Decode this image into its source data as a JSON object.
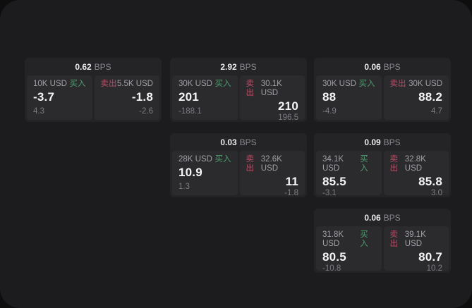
{
  "labels": {
    "bps_unit": "BPS",
    "buy": "买入",
    "sell": "卖出"
  },
  "colors": {
    "window_bg": "#1c1c1e",
    "card_bg": "#242427",
    "panel_bg": "#2b2b2e",
    "buy_green": "#4d9e6e",
    "sell_red": "#bb4d66",
    "value_white": "#f4f4f6",
    "muted_gray": "#7c7c81"
  },
  "cards": [
    {
      "bps": "0.62",
      "buy": {
        "size": "10K USD",
        "value": "-3.7",
        "change": "4.3"
      },
      "sell": {
        "size": "5.5K USD",
        "value": "-1.8",
        "change": "-2.6"
      }
    },
    {
      "bps": "2.92",
      "buy": {
        "size": "30K USD",
        "value": "201",
        "change": "-188.1"
      },
      "sell": {
        "size": "30.1K USD",
        "value": "210",
        "change": "196.5"
      }
    },
    {
      "bps": "0.06",
      "buy": {
        "size": "30K USD",
        "value": "88",
        "change": "-4.9"
      },
      "sell": {
        "size": "30K USD",
        "value": "88.2",
        "change": "4.7"
      }
    },
    {
      "bps": "0.03",
      "buy": {
        "size": "28K USD",
        "value": "10.9",
        "change": "1.3"
      },
      "sell": {
        "size": "32.6K USD",
        "value": "11",
        "change": "-1.8"
      }
    },
    {
      "bps": "0.09",
      "buy": {
        "size": "34.1K USD",
        "value": "85.5",
        "change": "-3.1"
      },
      "sell": {
        "size": "32.8K USD",
        "value": "85.8",
        "change": "3.0"
      }
    },
    {
      "bps": "0.06",
      "buy": {
        "size": "31.8K USD",
        "value": "80.5",
        "change": "-10.8"
      },
      "sell": {
        "size": "39.1K USD",
        "value": "80.7",
        "change": "10.2"
      }
    }
  ]
}
